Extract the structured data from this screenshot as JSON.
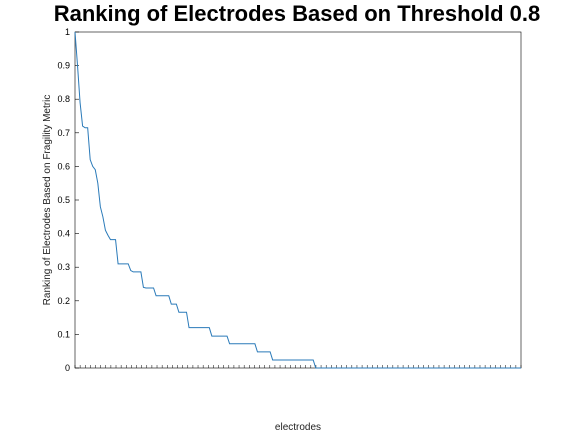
{
  "chart_data": {
    "type": "line",
    "title": "Ranking of Electrodes Based on Threshold 0.8",
    "xlabel": "electrodes",
    "ylabel": "Ranking of Electrodes Based on Fragility Metric",
    "ylim": [
      0,
      1
    ],
    "yticks": [
      "0",
      "0.1",
      "0.2",
      "0.3",
      "0.4",
      "0.5",
      "0.6",
      "0.7",
      "0.8",
      "0.9",
      "1"
    ],
    "grid": false,
    "line_color": "#2a7ab9",
    "x_count": 88,
    "series": [
      {
        "values": [
          1.0,
          0.9,
          0.79,
          0.72,
          0.715,
          0.715,
          0.62,
          0.6,
          0.59,
          0.55,
          0.48,
          0.45,
          0.41,
          0.395,
          0.382,
          0.382,
          0.382,
          0.31,
          0.31,
          0.31,
          0.31,
          0.31,
          0.29,
          0.286,
          0.286,
          0.286,
          0.286,
          0.24,
          0.238,
          0.238,
          0.238,
          0.238,
          0.215,
          0.215,
          0.215,
          0.215,
          0.215,
          0.215,
          0.19,
          0.19,
          0.19,
          0.166,
          0.166,
          0.166,
          0.166,
          0.12,
          0.12,
          0.12,
          0.12,
          0.12,
          0.12,
          0.12,
          0.12,
          0.12,
          0.095,
          0.095,
          0.095,
          0.095,
          0.095,
          0.095,
          0.095,
          0.072,
          0.072,
          0.072,
          0.072,
          0.072,
          0.072,
          0.072,
          0.072,
          0.072,
          0.072,
          0.072,
          0.048,
          0.048,
          0.048,
          0.048,
          0.048,
          0.048,
          0.024,
          0.024,
          0.024,
          0.024,
          0.024,
          0.024,
          0.024,
          0.024,
          0.024,
          0.024,
          0.024,
          0.024,
          0.024,
          0.024,
          0.024,
          0.024,
          0.024,
          0.0,
          0.0,
          0.0,
          0.0,
          0.0,
          0.0,
          0.0,
          0.0,
          0.0,
          0.0,
          0.0,
          0.0,
          0.0,
          0.0,
          0.0,
          0.0,
          0.0,
          0.0,
          0.0,
          0.0,
          0.0,
          0.0,
          0.0,
          0.0,
          0.0,
          0.0,
          0.0,
          0.0,
          0.0,
          0.0,
          0.0,
          0.0,
          0.0,
          0.0,
          0.0,
          0.0,
          0.0,
          0.0,
          0.0,
          0.0,
          0.0,
          0.0,
          0.0,
          0.0,
          0.0,
          0.0,
          0.0,
          0.0,
          0.0,
          0.0,
          0.0,
          0.0,
          0.0,
          0.0,
          0.0,
          0.0,
          0.0,
          0.0,
          0.0,
          0.0,
          0.0,
          0.0,
          0.0,
          0.0,
          0.0,
          0.0,
          0.0,
          0.0,
          0.0,
          0.0,
          0.0,
          0.0,
          0.0,
          0.0,
          0.0,
          0.0,
          0.0,
          0.0,
          0.0,
          0.0,
          0.0,
          0.0
        ]
      }
    ]
  }
}
